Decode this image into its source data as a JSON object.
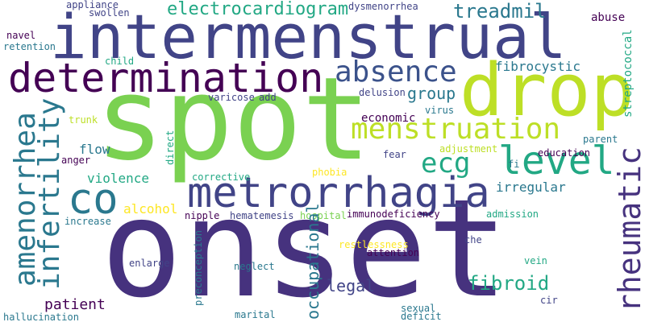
{
  "colors": {
    "background": "#ffffff",
    "palette": [
      "#440154",
      "#46327e",
      "#365c8d",
      "#277f8e",
      "#1fa187",
      "#4ac16d",
      "#a0da39",
      "#fde725"
    ]
  },
  "words": [
    {
      "text": "onset",
      "color": "#46327e"
    },
    {
      "text": "spot",
      "color": "#7ad151"
    },
    {
      "text": "intermenstrual",
      "color": "#414487"
    },
    {
      "text": "drop",
      "color": "#bddf26"
    },
    {
      "text": "determination",
      "color": "#440154"
    },
    {
      "text": "metrorrhagia",
      "color": "#414487"
    },
    {
      "text": "co",
      "color": "#2a788e"
    },
    {
      "text": "absence",
      "color": "#3b528b"
    },
    {
      "text": "menstruation",
      "color": "#bddf26"
    },
    {
      "text": "level",
      "color": "#22a884"
    },
    {
      "text": "ecg",
      "color": "#22a884"
    },
    {
      "text": "electrocardiogram",
      "color": "#22a884"
    },
    {
      "text": "treadmil",
      "color": "#2a788e"
    },
    {
      "text": "group",
      "color": "#2a788e"
    },
    {
      "text": "fibrocystic",
      "color": "#2a788e"
    },
    {
      "text": "flow",
      "color": "#2a788e"
    },
    {
      "text": "violence",
      "color": "#22a884"
    },
    {
      "text": "alcohol",
      "color": "#fde725"
    },
    {
      "text": "irregular",
      "color": "#2a788e"
    },
    {
      "text": "economic",
      "color": "#440154"
    },
    {
      "text": "legal",
      "color": "#414487"
    },
    {
      "text": "fibroid",
      "color": "#22a884"
    },
    {
      "text": "patient",
      "color": "#440154"
    },
    {
      "text": "abuse",
      "color": "#440154"
    },
    {
      "text": "appliance",
      "color": "#414487"
    },
    {
      "text": "swollen",
      "color": "#414487"
    },
    {
      "text": "dysmenorrhea",
      "color": "#414487"
    },
    {
      "text": "navel",
      "color": "#440154"
    },
    {
      "text": "retention",
      "color": "#2a788e"
    },
    {
      "text": "child",
      "color": "#22a884"
    },
    {
      "text": "varicose",
      "color": "#414487"
    },
    {
      "text": "add",
      "color": "#414487"
    },
    {
      "text": "delusion",
      "color": "#414487"
    },
    {
      "text": "virus",
      "color": "#2a788e"
    },
    {
      "text": "trunk",
      "color": "#bddf26"
    },
    {
      "text": "anger",
      "color": "#440154"
    },
    {
      "text": "fear",
      "color": "#414487"
    },
    {
      "text": "adjustment",
      "color": "#bddf26"
    },
    {
      "text": "parent",
      "color": "#2a788e"
    },
    {
      "text": "education",
      "color": "#440154"
    },
    {
      "text": "fi",
      "color": "#2a788e"
    },
    {
      "text": "corrective",
      "color": "#22a884"
    },
    {
      "text": "phobia",
      "color": "#fde725"
    },
    {
      "text": "increase",
      "color": "#2a788e"
    },
    {
      "text": "nipple",
      "color": "#440154"
    },
    {
      "text": "hematemesis",
      "color": "#414487"
    },
    {
      "text": "hospital",
      "color": "#7ad151"
    },
    {
      "text": "immunodeficiency",
      "color": "#440154"
    },
    {
      "text": "admission",
      "color": "#22a884"
    },
    {
      "text": "restlessness",
      "color": "#fde725"
    },
    {
      "text": "attention",
      "color": "#440154"
    },
    {
      "text": "che",
      "color": "#414487"
    },
    {
      "text": "enlarge",
      "color": "#414487"
    },
    {
      "text": "neglect",
      "color": "#2a788e"
    },
    {
      "text": "vein",
      "color": "#22a884"
    },
    {
      "text": "cir",
      "color": "#414487"
    },
    {
      "text": "marital",
      "color": "#2a788e"
    },
    {
      "text": "sexual",
      "color": "#2a788e"
    },
    {
      "text": "deficit",
      "color": "#2a788e"
    },
    {
      "text": "hallucination",
      "color": "#2a788e"
    },
    {
      "text": "amenorrhea",
      "color": "#2a788e"
    },
    {
      "text": "infertility",
      "color": "#2a788e"
    },
    {
      "text": "rheumatic",
      "color": "#46327e"
    },
    {
      "text": "streptococcal",
      "color": "#22a884"
    },
    {
      "text": "direct",
      "color": "#22a884"
    },
    {
      "text": "preconception",
      "color": "#2a788e"
    },
    {
      "text": "occupational",
      "color": "#2a788e"
    }
  ]
}
